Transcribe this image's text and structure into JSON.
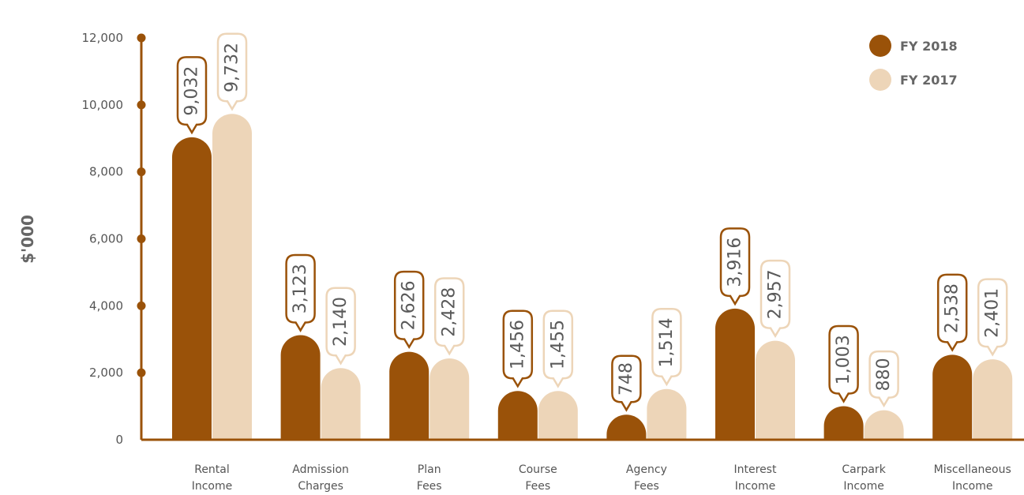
{
  "colors": {
    "fy2018": "#9a5209",
    "fy2017": "#edd5b8",
    "axis": "#9a5209"
  },
  "chart_data": {
    "type": "bar",
    "title": "",
    "xlabel": "",
    "ylabel": "$'000",
    "ylim": [
      0,
      12000
    ],
    "yticks": [
      "0",
      "2,000",
      "4,000",
      "6,000",
      "8,000",
      "10,000",
      "12,000"
    ],
    "categories": [
      [
        "Rental",
        "Income"
      ],
      [
        "Admission",
        "Charges"
      ],
      [
        "Plan",
        "Fees"
      ],
      [
        "Course",
        "Fees"
      ],
      [
        "Agency",
        "Fees"
      ],
      [
        "Interest",
        "Income"
      ],
      [
        "Carpark",
        "Income"
      ],
      [
        "Miscellaneous",
        "Income"
      ]
    ],
    "series": [
      {
        "name": "FY 2018",
        "values": [
          9032,
          3123,
          2626,
          1456,
          748,
          3916,
          1003,
          2538
        ],
        "labels": [
          "9,032",
          "3,123",
          "2,626",
          "1,456",
          "748",
          "3,916",
          "1,003",
          "2,538"
        ]
      },
      {
        "name": "FY 2017",
        "values": [
          9732,
          2140,
          2428,
          1455,
          1514,
          2957,
          880,
          2401
        ],
        "labels": [
          "9,732",
          "2,140",
          "2,428",
          "1,455",
          "1,514",
          "2,957",
          "880",
          "2,401"
        ]
      }
    ],
    "legend": "top-right",
    "grid": false
  }
}
